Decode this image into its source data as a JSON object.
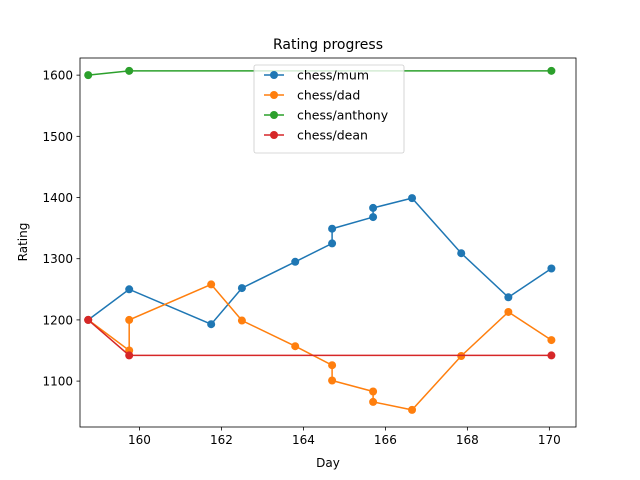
{
  "chart_data": {
    "type": "line",
    "title": "Rating progress",
    "xlabel": "Day",
    "ylabel": "Rating",
    "xlim": [
      158.55,
      170.65
    ],
    "ylim": [
      1025,
      1628
    ],
    "xticks": [
      160,
      162,
      164,
      166,
      168,
      170
    ],
    "yticks": [
      1100,
      1200,
      1300,
      1400,
      1500,
      1600
    ],
    "grid": false,
    "legend": "upper center",
    "series": [
      {
        "name": "chess/mum",
        "color": "#1f77b4",
        "x": [
          158.75,
          159.75,
          161.75,
          162.5,
          163.8,
          164.7,
          164.7,
          165.7,
          165.7,
          166.65,
          167.85,
          169.0,
          170.05
        ],
        "y": [
          1200,
          1250,
          1193,
          1252,
          1295,
          1325,
          1349,
          1368,
          1383,
          1399,
          1309,
          1237,
          1284
        ]
      },
      {
        "name": "chess/dad",
        "color": "#ff7f0e",
        "x": [
          158.75,
          159.75,
          159.75,
          161.75,
          162.5,
          163.8,
          164.7,
          164.7,
          165.7,
          165.7,
          166.65,
          167.85,
          169.0,
          170.05
        ],
        "y": [
          1200,
          1150,
          1200,
          1258,
          1199,
          1157,
          1126,
          1101,
          1083,
          1066,
          1053,
          1141,
          1213,
          1167
        ]
      },
      {
        "name": "chess/anthony",
        "color": "#2ca02c",
        "x": [
          158.75,
          159.75,
          170.05
        ],
        "y": [
          1600,
          1607,
          1607
        ]
      },
      {
        "name": "chess/dean",
        "color": "#d62728",
        "x": [
          158.75,
          159.75,
          170.05
        ],
        "y": [
          1200,
          1142,
          1142
        ]
      }
    ]
  }
}
